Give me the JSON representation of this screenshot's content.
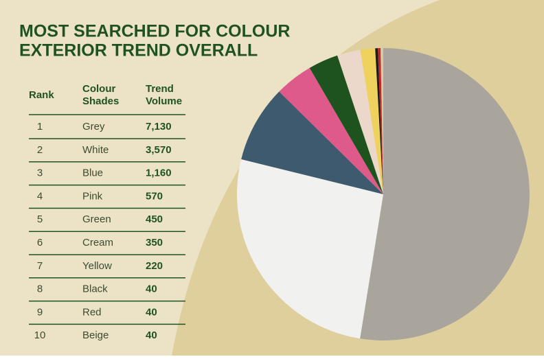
{
  "chart_data": {
    "type": "pie",
    "title": [
      "MOST SEARCHED FOR COLOUR",
      "EXTERIOR TREND OVERALL"
    ],
    "headers": [
      [
        "Rank"
      ],
      [
        "Colour",
        "Shades"
      ],
      [
        "Trend",
        "Volume"
      ]
    ],
    "ranks": [
      1,
      2,
      3,
      4,
      5,
      6,
      7,
      8,
      9,
      10
    ],
    "categories": [
      "Grey",
      "White",
      "Blue",
      "Pink",
      "Green",
      "Cream",
      "Yellow",
      "Black",
      "Red",
      "Beige"
    ],
    "values": [
      7130,
      3570,
      1160,
      570,
      450,
      350,
      220,
      40,
      40,
      40
    ],
    "value_labels": [
      "7,130",
      "3,570",
      "1,160",
      "570",
      "450",
      "350",
      "220",
      "40",
      "40",
      "40"
    ],
    "colors": [
      "#a9a59d",
      "#f1f1ef",
      "#3e5a6f",
      "#de5a8b",
      "#1e5320",
      "#ebd8ca",
      "#efd15e",
      "#1b1b1b",
      "#c2282a",
      "#d9c9a2"
    ]
  }
}
